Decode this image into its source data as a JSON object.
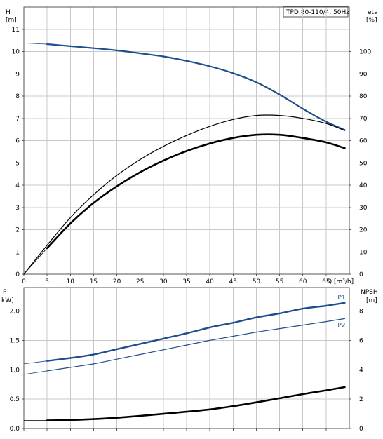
{
  "chart_data": [
    {
      "type": "line",
      "title": "TPD 80-110/4, 50Hz",
      "xlabel": "Q [m³/h]",
      "ylabel_left": [
        "H",
        "[m]"
      ],
      "ylabel_right": [
        "eta",
        "[%]"
      ],
      "xlim": [
        0,
        70
      ],
      "ylim": [
        0,
        12
      ],
      "y2lim": [
        0,
        120
      ],
      "x_ticks": [
        0,
        5,
        10,
        15,
        20,
        25,
        30,
        35,
        40,
        45,
        50,
        55,
        60,
        65
      ],
      "y_ticks": [
        0,
        1,
        2,
        3,
        4,
        5,
        6,
        7,
        8,
        9,
        10,
        11
      ],
      "y2_ticks": [
        0,
        10,
        20,
        30,
        40,
        50,
        60,
        70,
        80,
        90,
        100
      ],
      "grid": true,
      "series": [
        {
          "axis": "left",
          "color": "#1f4e8c",
          "width": 2.2,
          "x": [
            5,
            10,
            15,
            20,
            25,
            30,
            35,
            40,
            45,
            50,
            55,
            60,
            65,
            69
          ],
          "y": [
            10.33,
            10.24,
            10.15,
            10.05,
            9.92,
            9.78,
            9.58,
            9.34,
            9.03,
            8.62,
            8.07,
            7.43,
            6.85,
            6.48
          ]
        },
        {
          "axis": "left",
          "color": "#1f4e8c",
          "width": 0.8,
          "x": [
            0,
            5
          ],
          "y": [
            10.38,
            10.33
          ]
        },
        {
          "axis": "right",
          "color": "#000000",
          "width": 1.2,
          "x": [
            0,
            5,
            10,
            15,
            20,
            25,
            30,
            35,
            40,
            45,
            50,
            55,
            60,
            65,
            69
          ],
          "y": [
            0,
            13.0,
            25.4,
            35.7,
            44.4,
            51.5,
            57.4,
            62.3,
            66.4,
            69.5,
            71.3,
            71.3,
            70.0,
            67.7,
            64.5
          ]
        },
        {
          "axis": "right",
          "color": "#000000",
          "width": 2.6,
          "x": [
            5,
            10,
            15,
            20,
            25,
            30,
            35,
            40,
            45,
            50,
            55,
            60,
            65,
            69
          ],
          "y": [
            11.7,
            22.8,
            32.0,
            39.5,
            45.8,
            51.0,
            55.3,
            58.7,
            61.2,
            62.6,
            62.6,
            61.2,
            59.2,
            56.6
          ]
        },
        {
          "axis": "right",
          "color": "#000000",
          "width": 0.8,
          "x": [
            0,
            5
          ],
          "y": [
            0,
            11.7
          ]
        }
      ]
    },
    {
      "type": "line",
      "xlabel": "",
      "ylabel_left": [
        "P",
        "kW]"
      ],
      "ylabel_right": [
        "NPSH",
        "[m]"
      ],
      "xlim": [
        0,
        70
      ],
      "ylim": [
        0,
        2.4
      ],
      "y2lim": [
        0,
        9.6
      ],
      "y_ticks": [
        0.0,
        0.5,
        1.0,
        1.5,
        2.0
      ],
      "y_tick_labels": [
        "0.0",
        "0.5",
        "1.0",
        "1.5",
        "2.0"
      ],
      "y2_ticks": [
        0,
        2,
        4,
        6,
        8
      ],
      "grid": true,
      "series": [
        {
          "name": "P1",
          "axis": "left",
          "color": "#1f4e8c",
          "width": 2.4,
          "x": [
            5,
            10,
            15,
            20,
            25,
            30,
            35,
            40,
            45,
            50,
            55,
            60,
            65,
            69
          ],
          "y": [
            1.15,
            1.2,
            1.26,
            1.35,
            1.44,
            1.53,
            1.62,
            1.72,
            1.8,
            1.89,
            1.96,
            2.04,
            2.09,
            2.14
          ]
        },
        {
          "axis": "left",
          "color": "#1f4e8c",
          "width": 0.8,
          "x": [
            0,
            5
          ],
          "y": [
            1.1,
            1.15
          ]
        },
        {
          "name": "P2",
          "axis": "left",
          "color": "#1f4e8c",
          "width": 1.2,
          "x": [
            5,
            10,
            15,
            20,
            25,
            30,
            35,
            40,
            45,
            50,
            55,
            60,
            65,
            69
          ],
          "y": [
            0.98,
            1.04,
            1.1,
            1.18,
            1.26,
            1.34,
            1.42,
            1.5,
            1.57,
            1.64,
            1.7,
            1.76,
            1.82,
            1.87
          ]
        },
        {
          "axis": "left",
          "color": "#1f4e8c",
          "width": 0.8,
          "x": [
            0,
            5
          ],
          "y": [
            0.92,
            0.98
          ]
        },
        {
          "axis": "right",
          "color": "#000000",
          "width": 2.6,
          "x": [
            5,
            10,
            15,
            20,
            25,
            30,
            35,
            40,
            45,
            50,
            55,
            60,
            65,
            69
          ],
          "y": [
            0.55,
            0.58,
            0.64,
            0.73,
            0.86,
            1.0,
            1.14,
            1.3,
            1.52,
            1.78,
            2.06,
            2.34,
            2.6,
            2.82
          ]
        },
        {
          "axis": "right",
          "color": "#000000",
          "width": 0.8,
          "x": [
            0,
            5
          ],
          "y": [
            0.55,
            0.55
          ]
        }
      ]
    }
  ]
}
